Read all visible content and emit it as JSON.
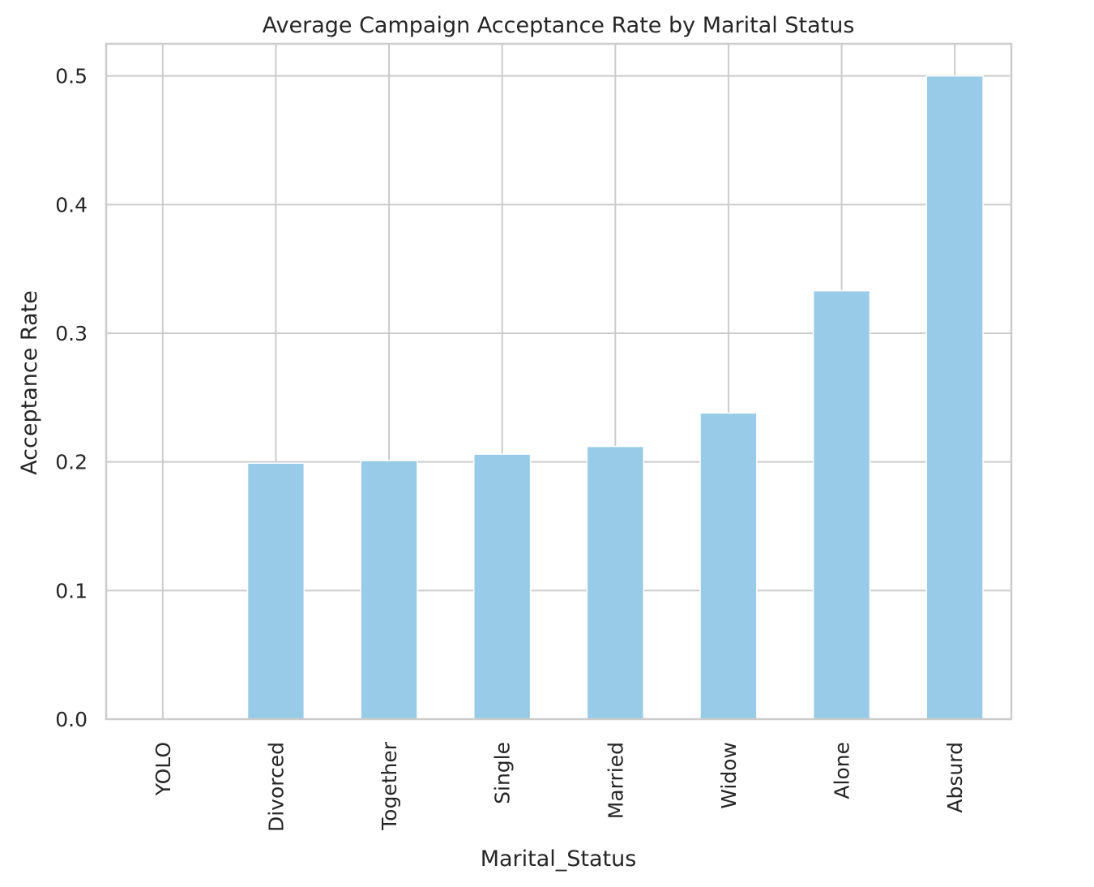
{
  "chart_data": {
    "type": "bar",
    "title": "Average Campaign Acceptance Rate by Marital Status",
    "xlabel": "Marital_Status",
    "ylabel": "Acceptance Rate",
    "categories": [
      "YOLO",
      "Divorced",
      "Together",
      "Single",
      "Married",
      "Widow",
      "Alone",
      "Absurd"
    ],
    "values": [
      0.0,
      0.199,
      0.201,
      0.206,
      0.212,
      0.238,
      0.333,
      0.5
    ],
    "ylim": [
      0,
      0.525
    ],
    "yticks": [
      0.0,
      0.1,
      0.2,
      0.3,
      0.4,
      0.5
    ],
    "ytick_labels": [
      "0.0",
      "0.1",
      "0.2",
      "0.3",
      "0.4",
      "0.5"
    ],
    "grid": true,
    "legend": "none",
    "bar_color": "#97cbe7",
    "grid_color": "#cccccc",
    "spine_color": "#cccccc"
  }
}
